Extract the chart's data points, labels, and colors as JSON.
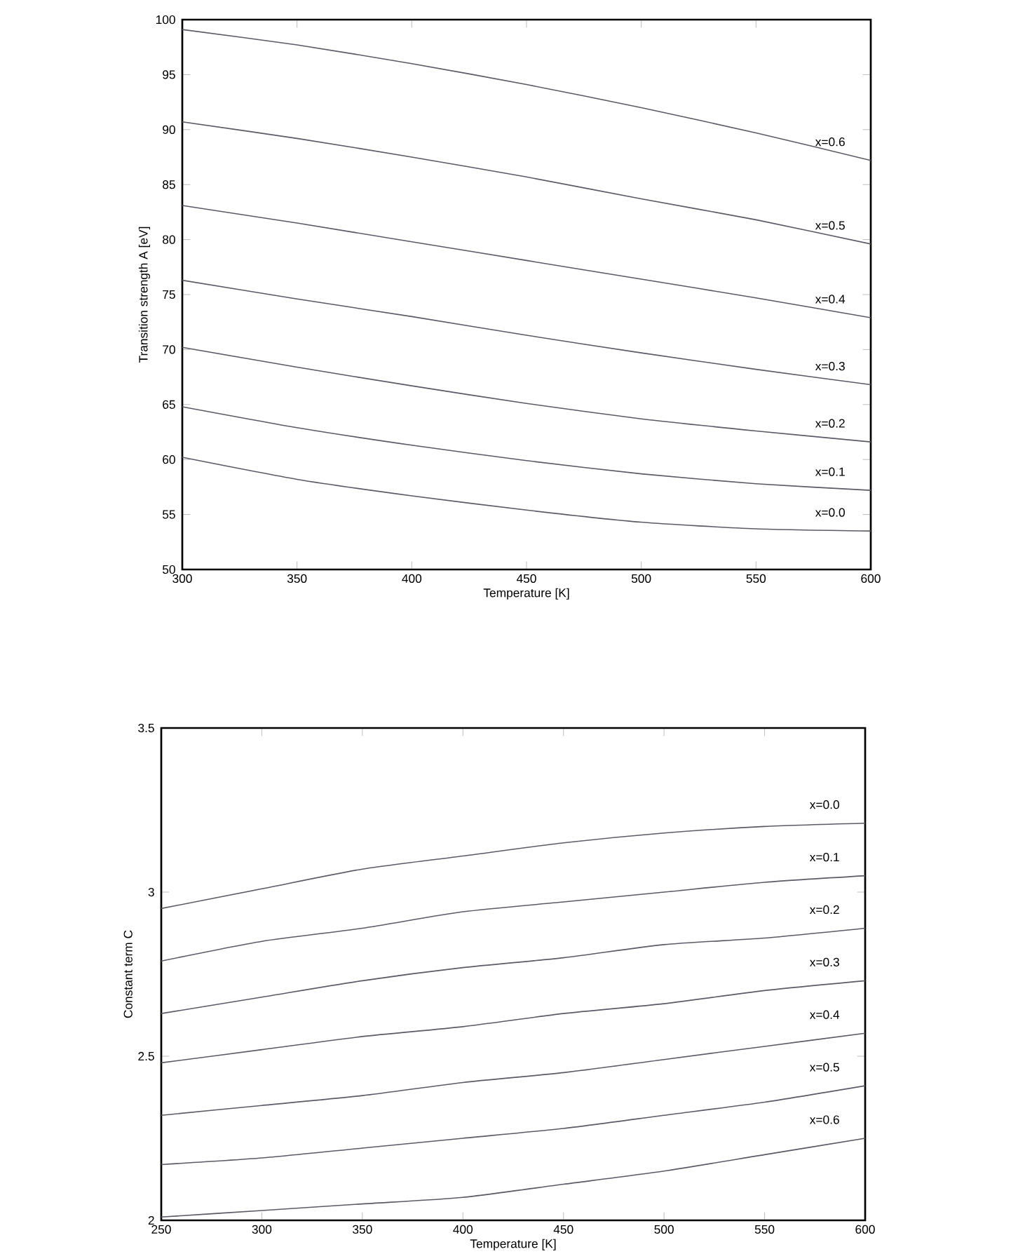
{
  "chart_data": [
    {
      "type": "line",
      "xlabel": "Temperature [K]",
      "ylabel": "Transition strength A [eV]",
      "x": [
        300,
        350,
        400,
        450,
        500,
        550,
        600
      ],
      "xlim": [
        300,
        600
      ],
      "ylim": [
        50,
        100
      ],
      "xticks": [
        300,
        350,
        400,
        450,
        500,
        550,
        600
      ],
      "yticks": [
        50,
        55,
        60,
        65,
        70,
        75,
        80,
        85,
        90,
        95,
        100
      ],
      "grid": false,
      "legend": false,
      "marker": "none",
      "line_style": "solid",
      "series": [
        {
          "name": "x=0.6",
          "color": "#5a5a6a",
          "values": [
            99.1,
            97.7,
            96.0,
            94.1,
            92.0,
            89.7,
            87.2
          ]
        },
        {
          "name": "x=0.5",
          "color": "#5a5a6a",
          "values": [
            90.7,
            89.2,
            87.5,
            85.7,
            83.7,
            81.8,
            79.6
          ]
        },
        {
          "name": "x=0.4",
          "color": "#5a5a6a",
          "values": [
            83.1,
            81.5,
            79.8,
            78.1,
            76.4,
            74.7,
            72.9
          ]
        },
        {
          "name": "x=0.3",
          "color": "#5a5a6a",
          "values": [
            76.3,
            74.6,
            73.0,
            71.3,
            69.7,
            68.2,
            66.8
          ]
        },
        {
          "name": "x=0.2",
          "color": "#5a5a6a",
          "values": [
            70.2,
            68.4,
            66.7,
            65.1,
            63.7,
            62.6,
            61.6
          ]
        },
        {
          "name": "x=0.1",
          "color": "#5a5a6a",
          "values": [
            64.8,
            62.9,
            61.3,
            59.9,
            58.7,
            57.8,
            57.2
          ]
        },
        {
          "name": "x=0.0",
          "color": "#5a5a6a",
          "values": [
            60.2,
            58.2,
            56.7,
            55.4,
            54.3,
            53.7,
            53.5
          ]
        }
      ]
    },
    {
      "type": "line",
      "xlabel": "Temperature [K]",
      "ylabel": "Constant term C",
      "x": [
        250,
        300,
        350,
        400,
        450,
        500,
        550,
        600
      ],
      "xlim": [
        250,
        600
      ],
      "ylim": [
        2,
        3.5
      ],
      "xticks": [
        250,
        300,
        350,
        400,
        450,
        500,
        550,
        600
      ],
      "yticks": [
        2,
        2.5,
        3,
        3.5
      ],
      "grid": false,
      "legend": false,
      "marker": "none",
      "line_style": "solid",
      "series": [
        {
          "name": "x=0.0",
          "color": "#5a5a6a",
          "values": [
            2.95,
            3.01,
            3.07,
            3.11,
            3.15,
            3.18,
            3.2,
            3.21
          ]
        },
        {
          "name": "x=0.1",
          "color": "#5a5a6a",
          "values": [
            2.79,
            2.85,
            2.89,
            2.94,
            2.97,
            3.0,
            3.03,
            3.05
          ]
        },
        {
          "name": "x=0.2",
          "color": "#5a5a6a",
          "values": [
            2.63,
            2.68,
            2.73,
            2.77,
            2.8,
            2.84,
            2.86,
            2.89
          ]
        },
        {
          "name": "x=0.3",
          "color": "#5a5a6a",
          "values": [
            2.48,
            2.52,
            2.56,
            2.59,
            2.63,
            2.66,
            2.7,
            2.73
          ]
        },
        {
          "name": "x=0.4",
          "color": "#5a5a6a",
          "values": [
            2.32,
            2.35,
            2.38,
            2.42,
            2.45,
            2.49,
            2.53,
            2.57
          ]
        },
        {
          "name": "x=0.5",
          "color": "#5a5a6a",
          "values": [
            2.17,
            2.19,
            2.22,
            2.25,
            2.28,
            2.32,
            2.36,
            2.41
          ]
        },
        {
          "name": "x=0.6",
          "color": "#5a5a6a",
          "values": [
            2.01,
            2.03,
            2.05,
            2.07,
            2.11,
            2.15,
            2.2,
            2.25
          ]
        }
      ]
    }
  ]
}
